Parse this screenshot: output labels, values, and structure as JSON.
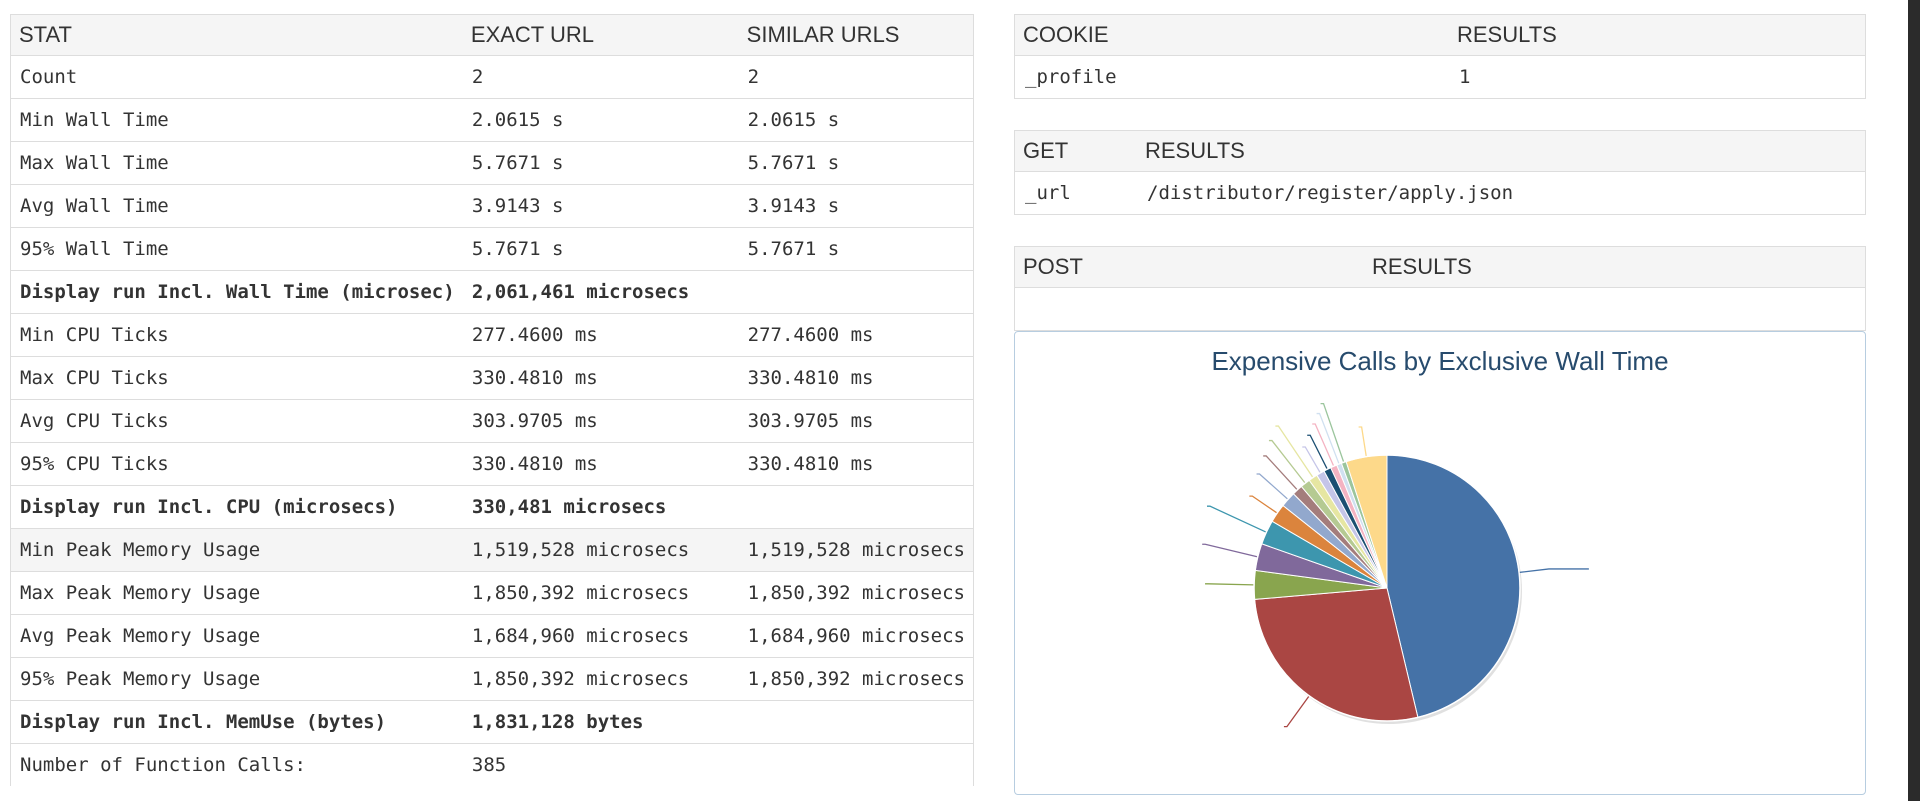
{
  "stats": {
    "headers": [
      "STAT",
      "EXACT URL",
      "SIMILAR URLS"
    ],
    "rows": [
      {
        "label": "Count",
        "exact": "2",
        "similar": "2",
        "link": true
      },
      {
        "label": "Min Wall Time",
        "exact": "2.0615 s",
        "similar": "2.0615 s"
      },
      {
        "label": "Max Wall Time",
        "exact": "5.7671 s",
        "similar": "5.7671 s"
      },
      {
        "label": "Avg Wall Time",
        "exact": "3.9143 s",
        "similar": "3.9143 s"
      },
      {
        "label": "95% Wall Time",
        "exact": "5.7671 s",
        "similar": "5.7671 s"
      },
      {
        "label": "Display run Incl. Wall Time (microsec)",
        "exact": "2,061,461 microsecs",
        "similar": "",
        "bold": true
      },
      {
        "label": "Min CPU Ticks",
        "exact": "277.4600 ms",
        "similar": "277.4600 ms"
      },
      {
        "label": "Max CPU Ticks",
        "exact": "330.4810 ms",
        "similar": "330.4810 ms"
      },
      {
        "label": "Avg CPU Ticks",
        "exact": "303.9705 ms",
        "similar": "303.9705 ms"
      },
      {
        "label": "95% CPU Ticks",
        "exact": "330.4810 ms",
        "similar": "330.4810 ms"
      },
      {
        "label": "Display run Incl. CPU (microsecs)",
        "exact": "330,481 microsecs",
        "similar": "",
        "bold": true
      },
      {
        "label": "Min Peak Memory Usage",
        "exact": "1,519,528 microsecs",
        "similar": "1,519,528 microsecs",
        "highlight": true
      },
      {
        "label": "Max Peak Memory Usage",
        "exact": "1,850,392 microsecs",
        "similar": "1,850,392 microsecs"
      },
      {
        "label": "Avg Peak Memory Usage",
        "exact": "1,684,960 microsecs",
        "similar": "1,684,960 microsecs"
      },
      {
        "label": "95% Peak Memory Usage",
        "exact": "1,850,392 microsecs",
        "similar": "1,850,392 microsecs"
      },
      {
        "label": "Display run Incl. MemUse (bytes)",
        "exact": "1,831,128 bytes",
        "similar": "",
        "bold": true
      },
      {
        "label": "Number of Function Calls:",
        "exact": "385",
        "similar": ""
      }
    ]
  },
  "cookie": {
    "headers": [
      "COOKIE",
      "RESULTS"
    ],
    "rows": [
      {
        "key": "_profile",
        "value": "1"
      }
    ]
  },
  "get": {
    "headers": [
      "GET",
      "RESULTS"
    ],
    "rows": [
      {
        "key": "_url",
        "value": "/distributor/register/apply.json"
      }
    ]
  },
  "post": {
    "headers": [
      "POST",
      "RESULTS"
    ],
    "rows": [
      {
        "key": "",
        "value": ""
      }
    ]
  },
  "chart_data": {
    "type": "pie",
    "title": "Expensive Calls by Exclusive Wall Time",
    "series": [
      {
        "values": [
          46.5,
          27.5,
          3.5,
          3.3,
          3.0,
          2.3,
          1.9,
          1.3,
          1.2,
          1.1,
          1.0,
          0.9,
          0.8,
          0.6,
          0.6,
          5.0
        ]
      }
    ],
    "colors": [
      "#4572a7",
      "#aa4643",
      "#89a54e",
      "#80699b",
      "#3d96ae",
      "#db843d",
      "#92a8cd",
      "#a47d7c",
      "#b5ca92",
      "#e6e6a2",
      "#c5c5e8",
      "#1b4f72",
      "#f4b3c2",
      "#d0e0f0",
      "#9bc59d",
      "#fdd98a"
    ]
  },
  "colors": {
    "accent_link": "#2a9fd6",
    "header_bg": "#f5f5f5",
    "chart_title": "#274b6d",
    "border": "#dddddd"
  }
}
